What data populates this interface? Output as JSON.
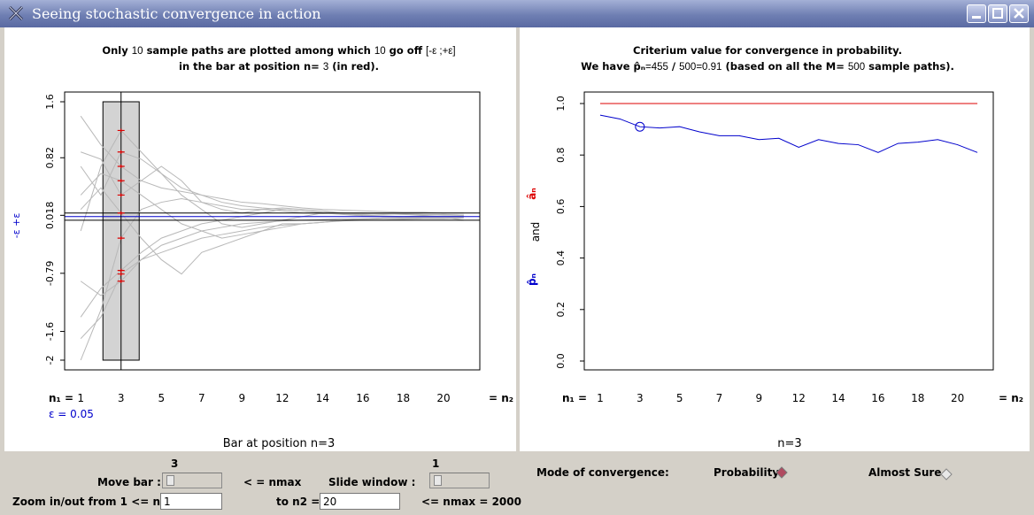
{
  "window": {
    "title": "Seeing stochastic convergence in action"
  },
  "left_panel": {
    "title_prefix": "Only",
    "title_n_plotted": "10",
    "title_mid": "sample paths are plotted among which",
    "title_n_off": "10",
    "title_go_off": "go off",
    "title_interval": "[-ε ;+ε]",
    "title_line2_prefix": "in the bar at position n=",
    "title_line2_pos": "3",
    "title_line2_suffix": "(in red).",
    "ylabel": "-ε +ε",
    "n1_label": "n₁ =",
    "n2_label": "= n₂",
    "epsilon_label": "ε = 0.05",
    "caption": "Bar at position n=3"
  },
  "right_panel": {
    "title_line1": "Criterium value for convergence in probability.",
    "title_we_have": "We have",
    "p_hat_symbol": "p̂ₙ",
    "title_eq_count": "=455",
    "title_slash": "/",
    "title_total": "500",
    "title_ratio": "=0.91",
    "title_based": "(based on all the M=",
    "title_M": "500",
    "title_end": "sample paths).",
    "ylabel_p": "p̂ₙ",
    "ylabel_and": "and",
    "ylabel_a": "âₙ",
    "n1_label": "n₁ =",
    "n2_label": "= n₂",
    "caption": "n=3"
  },
  "chart_data": [
    {
      "type": "line",
      "x": [
        1,
        2,
        3,
        4,
        5,
        6,
        7,
        8,
        9,
        10,
        11,
        12,
        13,
        14,
        15,
        16,
        17,
        18,
        19,
        20
      ],
      "xticks": [
        "1",
        "3",
        "5",
        "7",
        "9",
        "12",
        "14",
        "16",
        "18",
        "20"
      ],
      "yticks": [
        "1.6",
        "0.82",
        "0.018",
        "-0.79",
        "-1.6",
        "-2"
      ],
      "ylim": [
        -2,
        1.6
      ],
      "epsilon": 0.05,
      "bar_position": 3,
      "series": [
        {
          "values": [
            -0.2,
            0.7,
            1.2,
            0.9,
            0.6,
            0.4,
            0.3,
            0.2,
            0.15,
            0.12,
            0.1,
            0.08,
            0.06,
            0.05,
            0.05,
            0.04,
            0.04,
            0.03,
            0.03,
            0.02
          ]
        },
        {
          "values": [
            -1.7,
            -1.4,
            -0.8,
            -0.6,
            -0.4,
            -0.3,
            -0.2,
            -0.15,
            -0.1,
            -0.08,
            -0.06,
            -0.05,
            -0.04,
            -0.03,
            -0.03,
            -0.02,
            -0.02,
            -0.01,
            -0.01,
            -0.01
          ]
        },
        {
          "values": [
            1.4,
            1.0,
            0.7,
            0.5,
            0.4,
            0.35,
            0.3,
            0.25,
            0.2,
            0.18,
            0.15,
            0.12,
            0.1,
            0.09,
            0.08,
            0.07,
            0.06,
            0.06,
            0.05,
            0.05
          ]
        },
        {
          "values": [
            -0.9,
            -1.1,
            -0.9,
            -0.6,
            -0.5,
            -0.4,
            -0.3,
            -0.25,
            -0.2,
            -0.15,
            -0.12,
            -0.1,
            -0.08,
            -0.06,
            -0.05,
            -0.05,
            -0.04,
            -0.03,
            -0.03,
            -0.02
          ]
        },
        {
          "values": [
            0.9,
            0.8,
            0.3,
            0.5,
            0.7,
            0.5,
            0.2,
            0.1,
            0.05,
            0.1,
            0.08,
            0.05,
            0.04,
            0.05,
            0.03,
            0.04,
            0.03,
            0.02,
            0.03,
            0.02
          ]
        },
        {
          "values": [
            0.3,
            0.6,
            0.5,
            0.3,
            0.1,
            -0.1,
            -0.2,
            -0.3,
            -0.25,
            -0.2,
            -0.15,
            -0.1,
            -0.08,
            -0.05,
            -0.04,
            -0.03,
            -0.03,
            -0.02,
            -0.02,
            -0.01
          ]
        },
        {
          "values": [
            -2.0,
            -1.3,
            -0.3,
            0.1,
            0.2,
            0.25,
            0.2,
            0.15,
            0.1,
            0.1,
            0.12,
            0.1,
            0.08,
            0.05,
            0.04,
            0.03,
            0.04,
            0.03,
            0.02,
            0.02
          ]
        },
        {
          "values": [
            0.7,
            0.3,
            0.9,
            0.8,
            0.6,
            0.3,
            0.1,
            -0.1,
            -0.15,
            -0.1,
            -0.05,
            0.0,
            0.05,
            0.04,
            0.02,
            0.01,
            0.0,
            0.01,
            0.0,
            0.0
          ]
        },
        {
          "values": [
            -1.4,
            -1.0,
            -0.75,
            -0.5,
            -0.3,
            -0.2,
            -0.1,
            -0.05,
            0.0,
            0.05,
            0.1,
            0.08,
            0.05,
            0.03,
            0.01,
            0.0,
            -0.01,
            0.0,
            0.0,
            0.01
          ]
        },
        {
          "values": [
            0.1,
            0.4,
            0.05,
            -0.3,
            -0.6,
            -0.8,
            -0.5,
            -0.4,
            -0.3,
            -0.2,
            -0.1,
            -0.1,
            -0.08,
            -0.05,
            -0.03,
            -0.02,
            -0.02,
            -0.01,
            -0.01,
            -0.05
          ]
        }
      ]
    },
    {
      "type": "line",
      "x": [
        1,
        2,
        3,
        4,
        5,
        6,
        7,
        8,
        9,
        10,
        11,
        12,
        13,
        14,
        15,
        16,
        17,
        18,
        19,
        20
      ],
      "xticks": [
        "1",
        "3",
        "5",
        "7",
        "9",
        "12",
        "14",
        "16",
        "18",
        "20"
      ],
      "yticks": [
        "1.0",
        "0.8",
        "0.6",
        "0.4",
        "0.2",
        "0.0"
      ],
      "ylim": [
        0,
        1
      ],
      "highlight_x": 3,
      "series": [
        {
          "color": "#0000cc",
          "values": [
            0.955,
            0.94,
            0.91,
            0.905,
            0.91,
            0.89,
            0.875,
            0.875,
            0.86,
            0.865,
            0.83,
            0.86,
            0.845,
            0.84,
            0.81,
            0.845,
            0.85,
            0.86,
            0.84,
            0.81
          ]
        },
        {
          "color": "#dd0000",
          "values": [
            1,
            1,
            1,
            1,
            1,
            1,
            1,
            1,
            1,
            1,
            1,
            1,
            1,
            1,
            1,
            1,
            1,
            1,
            1,
            1
          ]
        }
      ]
    }
  ],
  "controls": {
    "move_bar_label": "Move bar :",
    "move_bar_value": "3",
    "arrow_nmax": "< =   nmax",
    "slide_window_label": "Slide window :",
    "slide_window_value": "1",
    "zoom_label": "Zoom in/out from 1 <= n1 =",
    "n1_value": "1",
    "to_n2_label": "to n2 =",
    "n2_value": "20",
    "nmax_label": "<= nmax = 2000",
    "mode_label": "Mode of convergence:",
    "probability_label": "Probability",
    "almost_sure_label": "Almost Sure"
  },
  "colors": {
    "blue": "#0000cc",
    "red": "#dd0000",
    "path": "#b8b8b8"
  }
}
